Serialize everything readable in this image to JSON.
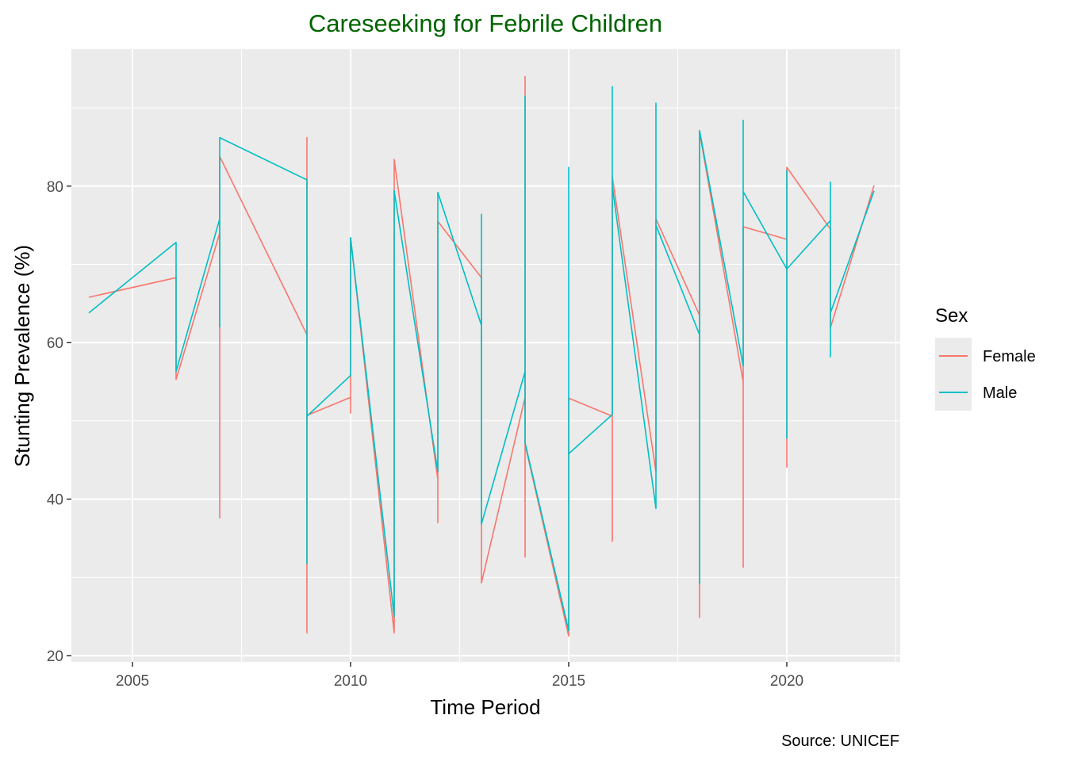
{
  "chart_data": {
    "type": "line",
    "title": "Careseeking for Febrile Children",
    "title_color": "#006400",
    "xlabel": "Time Period",
    "ylabel": "Stunting Prevalence (%)",
    "caption": "Source: UNICEF",
    "xlim": [
      2003.6,
      2022.6
    ],
    "ylim": [
      19.2,
      97.5
    ],
    "x_ticks": [
      2005,
      2010,
      2015,
      2020
    ],
    "y_ticks": [
      20,
      40,
      60,
      80
    ],
    "grid": true,
    "panel_background": "#EBEBEB",
    "legend": {
      "title": "Sex",
      "position": "right"
    },
    "series": [
      {
        "name": "Female",
        "color": "#F8766D",
        "points": [
          [
            2004,
            65.8
          ],
          [
            2006,
            68.3
          ],
          [
            2006,
            55.3
          ],
          [
            2007,
            74.0
          ],
          [
            2007,
            37.6
          ],
          [
            2007,
            83.8
          ],
          [
            2009,
            61.0
          ],
          [
            2009,
            86.2
          ],
          [
            2009,
            22.9
          ],
          [
            2009,
            50.7
          ],
          [
            2010,
            53.0
          ],
          [
            2010,
            51.0
          ],
          [
            2010,
            73.4
          ],
          [
            2011,
            22.9
          ],
          [
            2011,
            83.4
          ],
          [
            2012,
            42.5
          ],
          [
            2012,
            37.0
          ],
          [
            2012,
            75.5
          ],
          [
            2013,
            68.3
          ],
          [
            2013,
            29.3
          ],
          [
            2014,
            53.0
          ],
          [
            2014,
            32.6
          ],
          [
            2014,
            94.0
          ],
          [
            2014,
            47.0
          ],
          [
            2015,
            22.5
          ],
          [
            2015,
            52.9
          ],
          [
            2016,
            50.6
          ],
          [
            2016,
            34.6
          ],
          [
            2016,
            81.2
          ],
          [
            2017,
            43.5
          ],
          [
            2017,
            75.8
          ],
          [
            2018,
            63.5
          ],
          [
            2018,
            24.9
          ],
          [
            2018,
            86.9
          ],
          [
            2019,
            55.0
          ],
          [
            2019,
            31.3
          ],
          [
            2019,
            74.8
          ],
          [
            2020,
            73.2
          ],
          [
            2020,
            44.1
          ],
          [
            2020,
            82.4
          ],
          [
            2021,
            74.5
          ],
          [
            2021,
            61.9
          ],
          [
            2022,
            80.1
          ]
        ]
      },
      {
        "name": "Male",
        "color": "#00BFC4",
        "points": [
          [
            2004,
            63.8
          ],
          [
            2006,
            72.8
          ],
          [
            2006,
            56.3
          ],
          [
            2007,
            75.8
          ],
          [
            2007,
            62.0
          ],
          [
            2007,
            86.2
          ],
          [
            2009,
            80.8
          ],
          [
            2009,
            31.8
          ],
          [
            2009,
            50.6
          ],
          [
            2010,
            55.8
          ],
          [
            2010,
            73.4
          ],
          [
            2011,
            25.0
          ],
          [
            2011,
            79.4
          ],
          [
            2012,
            43.5
          ],
          [
            2012,
            79.2
          ],
          [
            2013,
            62.2
          ],
          [
            2013,
            76.4
          ],
          [
            2013,
            36.8
          ],
          [
            2014,
            56.3
          ],
          [
            2014,
            91.5
          ],
          [
            2014,
            47.2
          ],
          [
            2015,
            23.2
          ],
          [
            2015,
            82.4
          ],
          [
            2015,
            45.8
          ],
          [
            2016,
            50.8
          ],
          [
            2016,
            92.7
          ],
          [
            2016,
            80.0
          ],
          [
            2017,
            38.8
          ],
          [
            2017,
            90.6
          ],
          [
            2017,
            75.0
          ],
          [
            2018,
            61.0
          ],
          [
            2018,
            29.2
          ],
          [
            2018,
            87.1
          ],
          [
            2019,
            57.0
          ],
          [
            2019,
            88.4
          ],
          [
            2019,
            79.3
          ],
          [
            2020,
            69.4
          ],
          [
            2020,
            47.8
          ],
          [
            2020,
            82.0
          ],
          [
            2020,
            69.4
          ],
          [
            2021,
            75.6
          ],
          [
            2021,
            58.2
          ],
          [
            2021,
            80.5
          ],
          [
            2021,
            63.8
          ],
          [
            2022,
            79.4
          ]
        ]
      }
    ]
  }
}
